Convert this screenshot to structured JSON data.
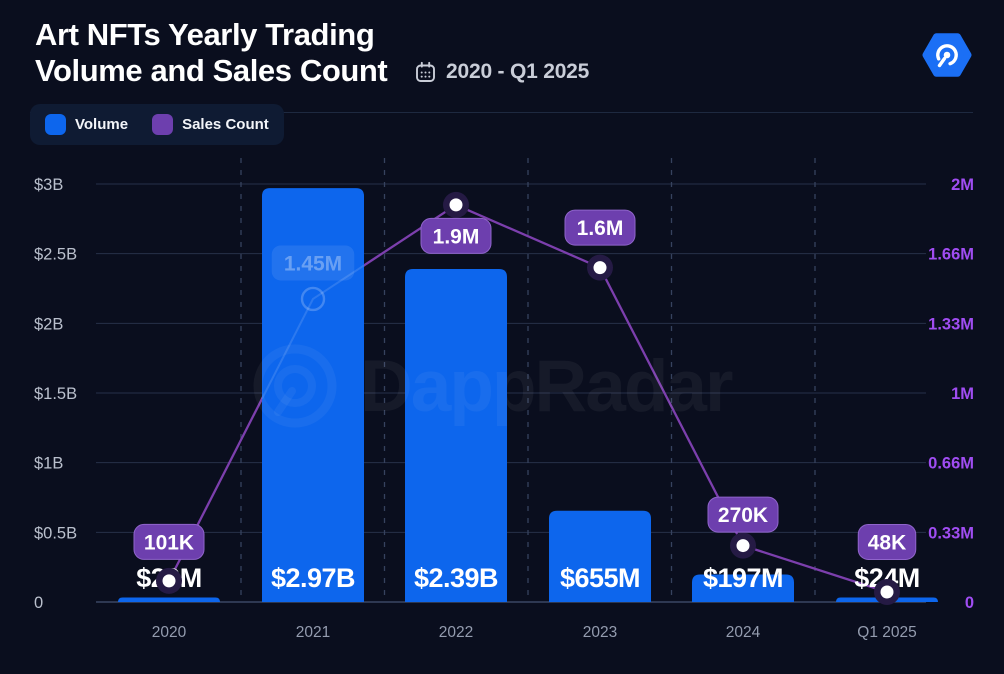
{
  "header": {
    "title_lines": [
      "Art NFTs Yearly Trading",
      "Volume and Sales Count"
    ],
    "date_range": "2020 - Q1 2025",
    "icons": {
      "date": "calendar-icon",
      "brand": "dappradar-logo"
    }
  },
  "legend": {
    "items": [
      {
        "label": "Volume",
        "color": "#0d66ed"
      },
      {
        "label": "Sales Count",
        "color": "#6d3fae"
      }
    ]
  },
  "watermark_text": "DappRadar",
  "colors": {
    "background": "#0a0e1e",
    "bar": "#0d66ed",
    "line": "#7c3fad",
    "badge_fill": "#6d3fae",
    "badge_border": "#9065cb",
    "badge_text": "#ffffff",
    "marker_ring": "#251a44",
    "marker_dot": "#ffffff",
    "value_label": "#ffffff",
    "left_axis_text": "#bac0cd",
    "right_axis_text": "#a04df2",
    "x_axis_text": "#949caf",
    "gridline": "#273049",
    "baseline": "#3a4763",
    "dashed_gridline": "#36425e"
  },
  "chart_data": {
    "type": "bar",
    "subtype": "bar+line combo, dual y-axis",
    "categories": [
      "2020",
      "2021",
      "2022",
      "2023",
      "2024",
      "Q1 2025"
    ],
    "series": [
      {
        "name": "Volume",
        "type": "bar",
        "axis": "left",
        "values_usd_billions": [
          0.029,
          2.97,
          2.39,
          0.655,
          0.197,
          0.024
        ],
        "data_labels": [
          "$29M",
          "$2.97B",
          "$2.39B",
          "$655M",
          "$197M",
          "$24M"
        ]
      },
      {
        "name": "Sales Count",
        "type": "line",
        "axis": "right",
        "values_millions": [
          0.101,
          1.45,
          1.9,
          1.6,
          0.27,
          0.048
        ],
        "data_labels": [
          "101K",
          "1.45M",
          "1.9M",
          "1.6M",
          "270K",
          "48K"
        ],
        "label_ghosted_behind_bar": [
          false,
          true,
          false,
          false,
          false,
          false
        ]
      }
    ],
    "left_axis": {
      "ticks": [
        "$3B",
        "$2.5B",
        "$2B",
        "$1.5B",
        "$1B",
        "$0.5B",
        "0"
      ],
      "min": 0,
      "max_billions": 3
    },
    "right_axis": {
      "ticks": [
        "2M",
        "1.66M",
        "1.33M",
        "1M",
        "0.66M",
        "0.33M",
        "0"
      ],
      "min": 0,
      "max_millions": 2
    },
    "grid": {
      "horizontal": true,
      "vertical": "dashed between categories"
    },
    "legend_position": "top-left"
  }
}
